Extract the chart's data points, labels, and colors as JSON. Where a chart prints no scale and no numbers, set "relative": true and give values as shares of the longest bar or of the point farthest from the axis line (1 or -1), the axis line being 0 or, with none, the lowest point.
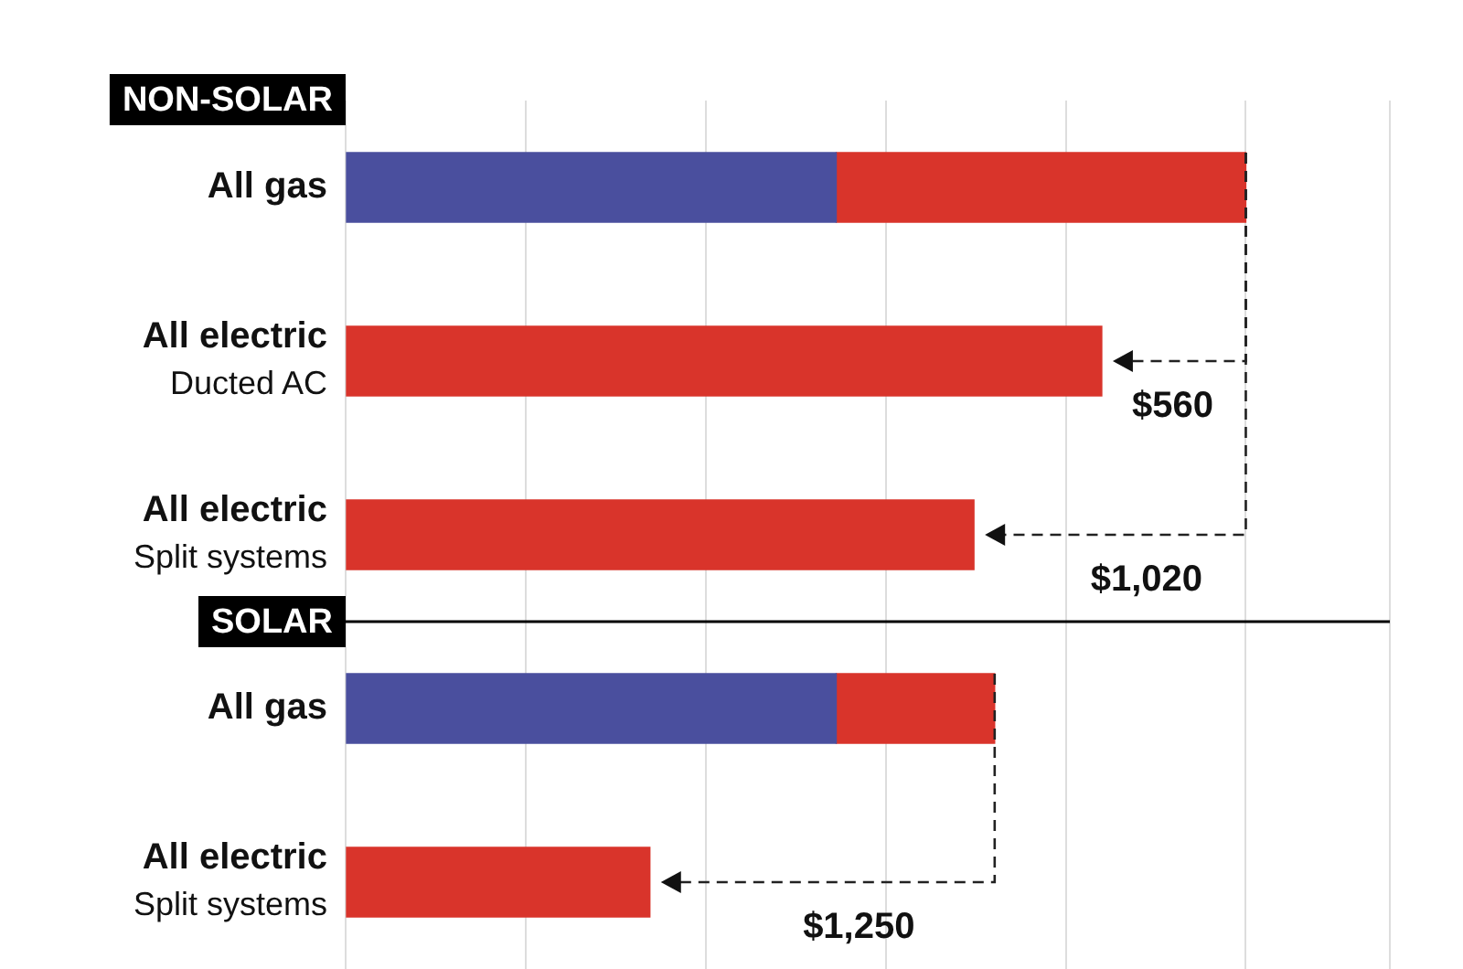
{
  "chart_data": {
    "type": "bar",
    "orientation": "horizontal",
    "stacked": true,
    "relative": true,
    "grid": "x",
    "categories": [
      "All gas",
      "All electric\nDucted AC",
      "All electric\nSplit systems",
      "All gas",
      "All electric\nSplit systems"
    ],
    "series": [
      {
        "color": "#4a4f9e",
        "values": [
          0.545,
          null,
          null,
          0.545,
          null
        ]
      },
      {
        "color": "#d9342b",
        "values": [
          0.455,
          0.84,
          0.698,
          0.176,
          0.338
        ]
      }
    ],
    "annotations": [
      "NON-SOLAR",
      "SOLAR",
      "$560",
      "$1,020",
      "$1,250"
    ]
  }
}
